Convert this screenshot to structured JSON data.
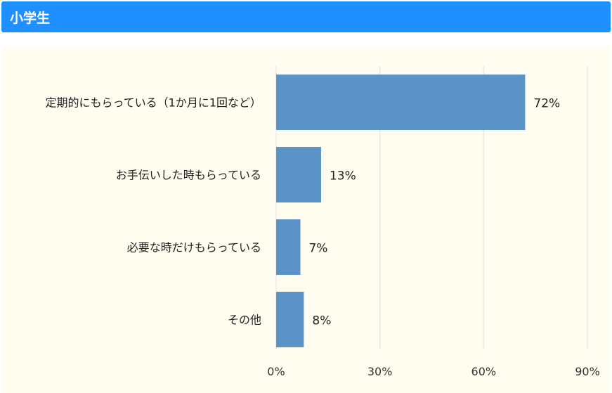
{
  "header": {
    "title": "小学生"
  },
  "chart_data": {
    "type": "bar",
    "orientation": "horizontal",
    "title": "小学生",
    "categories": [
      "定期的にもらっている（1か月に1回など）",
      "お手伝いした時もらっている",
      "必要な時だけもらっている",
      "その他"
    ],
    "values": [
      72,
      13,
      7,
      8
    ],
    "value_labels": [
      "72%",
      "13%",
      "7%",
      "8%"
    ],
    "xlim": [
      0,
      90
    ],
    "xticks": [
      0,
      30,
      60,
      90
    ],
    "xtick_labels": [
      "0%",
      "30%",
      "60%",
      "90%"
    ],
    "grid": true,
    "bar_color": "#5b93c9",
    "xlabel": "",
    "ylabel": ""
  }
}
